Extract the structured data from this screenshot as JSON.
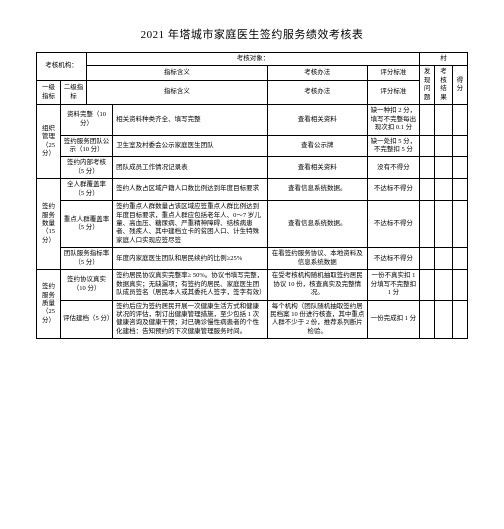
{
  "title": "2021 年塔城市家庭医生签约服务绩效考核表",
  "headers": {
    "org_label": "考核机构：",
    "target_label": "考核对象：",
    "village_label": "村",
    "col_l1": "一级指标",
    "col_l2": "二级指标",
    "col_def": "指标含义",
    "col_method": "考核办法",
    "col_std": "评分标准",
    "col_issue": "发现问题",
    "col_result": "考核结果",
    "col_score": "得分"
  },
  "rows": {
    "g1": {
      "l1": "组织管理（25 分）",
      "r1": {
        "l2": "资料完整（10 分）",
        "def": "相关资料种类齐全、填写完整",
        "method": "查看相关资料",
        "std": "缺一种扣 2 分，填写不完整每出现次扣 0.1 分"
      },
      "r2": {
        "l2": "签约服务团队公示（10 分）",
        "def": "卫生室及村委会公示家庭医生团队",
        "method": "查看公示牌",
        "std": "缺一处扣 5 分，不完整扣 5 分"
      },
      "r3": {
        "l2": "签约内部考核（5 分）",
        "def": "团队成员工作情况记录表",
        "method": "查看相关资料",
        "std": "没有不得分"
      }
    },
    "g2": {
      "l1": "签约服务数量（15 分）",
      "r1": {
        "l2": "全人群覆盖率（5 分）",
        "def": "签约人数占区域户籍人口数比例达到年度目标要求",
        "method": "查看信息系统数据。",
        "std": "不达标不得分"
      },
      "r2": {
        "l2": "重点人群覆盖率（5 分）",
        "def": "签约重点人群数量占该区域应签重点人群比例达到年度目标要求，重点人群应包括老年人、0～7 岁儿童、高血压、糖尿病、严重精神障碍、结核病患者、残疾人、其中建档立卡的贫困人口、计生特殊家庭人口实现应签尽签",
        "method": "查看信息系统数据。",
        "std": "不达标不得分"
      },
      "r3": {
        "l2": "团队服务指标率（5 分）",
        "def": "年度内家庭医生团队和居民续约的比例≥25%",
        "method": "在看签约服务协议、本地资料及信息系统数据",
        "std": "不达标不得分"
      }
    },
    "g3": {
      "l1": "签约服务质量（25 分）",
      "r1": {
        "l2": "签约协议真实（10 分）",
        "def": "签约居民协议真实完整率≥ 50%。协议书填写完整，数据真实；无缺漏项；有签约的居民、家庭医生团队成员签名（居民本人或其委托人签字，签字有效）",
        "method": "在受考核机构随机抽取签约居民协议 10 份，核查真实及完整情况。",
        "std": "一份不真实扣 1 分填写不完整扣 1 分"
      },
      "r2": {
        "l2": "评估建档（5 分）",
        "def": "签约后应为签约居民开展一次健康生活方式和健康状况的评估，制订出健康管理措施，至少包括 1 次健康咨询及健康干预；对已确诊慢性病患者的个性化建档：告知预约的下次健康管理服务时间。",
        "method": "每个机构（团队随机抽取签约居民档案 10 份进行核查，其中重点人群不少于 2 份，推荐系列断片检验。",
        "std": "一份完成扣 1 分"
      }
    }
  }
}
